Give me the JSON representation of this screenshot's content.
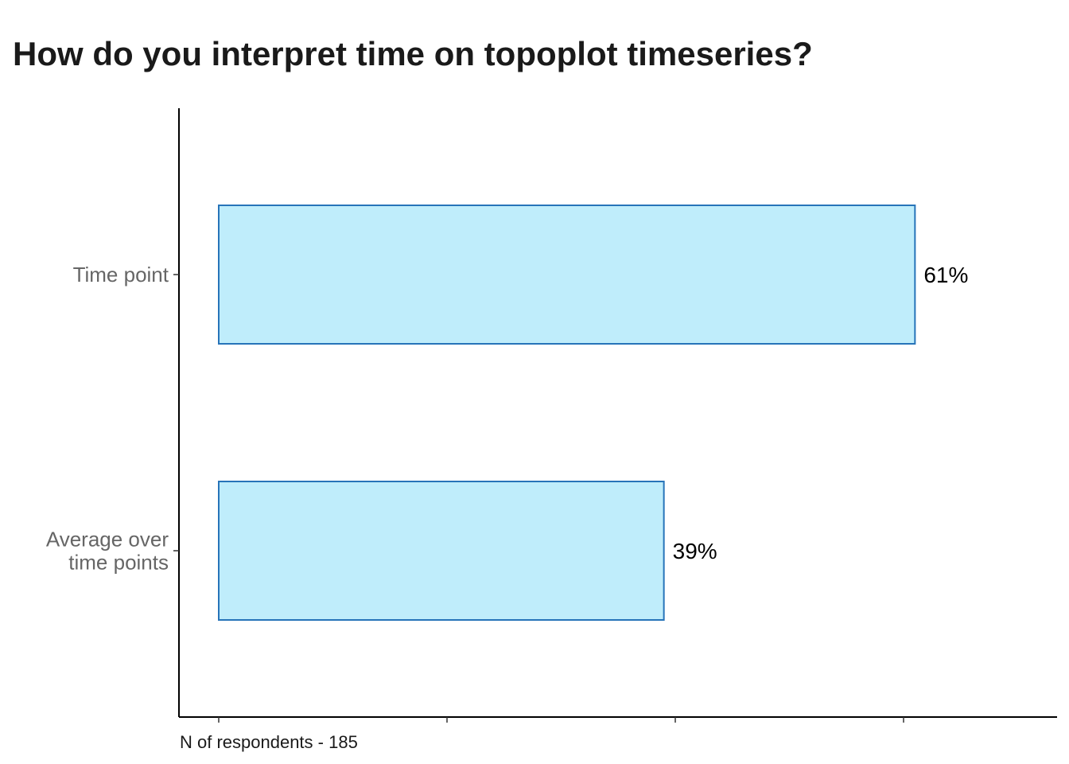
{
  "title": "How do you interpret time on topoplot timeseries?",
  "caption": "N of respondents - 185",
  "chart_data": {
    "type": "bar",
    "orientation": "horizontal",
    "title": "How do you interpret time on topoplot timeseries?",
    "categories": [
      "Time point",
      "Average over time points"
    ],
    "category_lines": [
      [
        "Time point"
      ],
      [
        "Average over",
        "time points"
      ]
    ],
    "values": [
      61,
      39
    ],
    "value_labels": [
      "61%",
      "39%"
    ],
    "xlim": [
      0,
      74
    ],
    "x_ticks": [
      0,
      20,
      40,
      60
    ],
    "x_tick_labels_shown": false,
    "grid": false,
    "legend": "none",
    "xlabel": "",
    "ylabel": "",
    "caption": "N of respondents - 185",
    "colors": {
      "bar_fill": "#bfedfb",
      "bar_stroke": "#2774b9"
    }
  }
}
